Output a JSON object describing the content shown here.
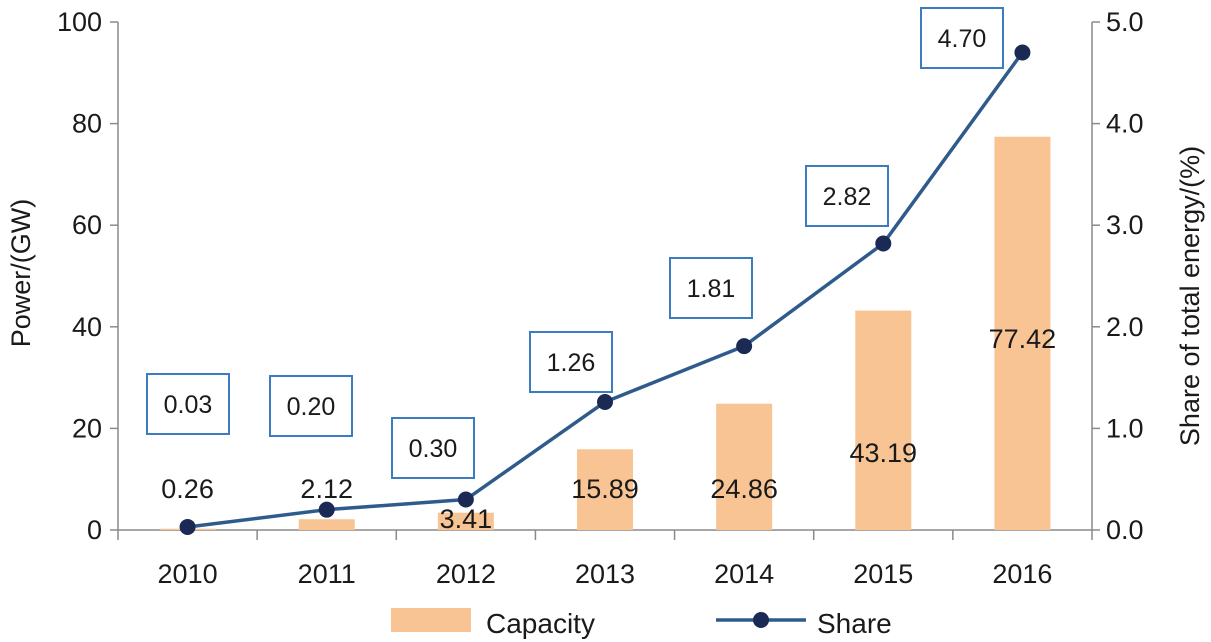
{
  "colors": {
    "bar": "#f8c494",
    "line": "#2f5b8c",
    "marker": "#1b2a55",
    "box_border": "#3b7dc0",
    "axis": "#8a8a8a"
  },
  "chart_data": {
    "type": "bar",
    "categories": [
      "2010",
      "2011",
      "2012",
      "2013",
      "2014",
      "2015",
      "2016"
    ],
    "series": [
      {
        "name": "Capacity",
        "type": "bar",
        "axis": "left",
        "values": [
          0.26,
          2.12,
          3.41,
          15.89,
          24.86,
          43.19,
          77.42
        ],
        "labels": [
          "0.26",
          "2.12",
          "3.41",
          "15.89",
          "24.86",
          "43.19",
          "77.42"
        ]
      },
      {
        "name": "Share",
        "type": "line",
        "axis": "right",
        "values": [
          0.03,
          0.2,
          0.3,
          1.26,
          1.81,
          2.82,
          4.7
        ],
        "labels": [
          "0.03",
          "0.20",
          "0.30",
          "1.26",
          "1.81",
          "2.82",
          "4.70"
        ]
      }
    ],
    "ylabel": "Power/(GW)",
    "y2label": "Share of total energy/(%)",
    "ylim": [
      0,
      100
    ],
    "y2lim": [
      0,
      5
    ],
    "yticks": [
      "0",
      "20",
      "40",
      "60",
      "80",
      "100"
    ],
    "y2ticks": [
      "0.0",
      "1.0",
      "2.0",
      "3.0",
      "4.0",
      "5.0"
    ],
    "legend": [
      {
        "name": "Capacity",
        "kind": "bar"
      },
      {
        "name": "Share",
        "kind": "line"
      }
    ],
    "legend_position": "bottom-center"
  }
}
